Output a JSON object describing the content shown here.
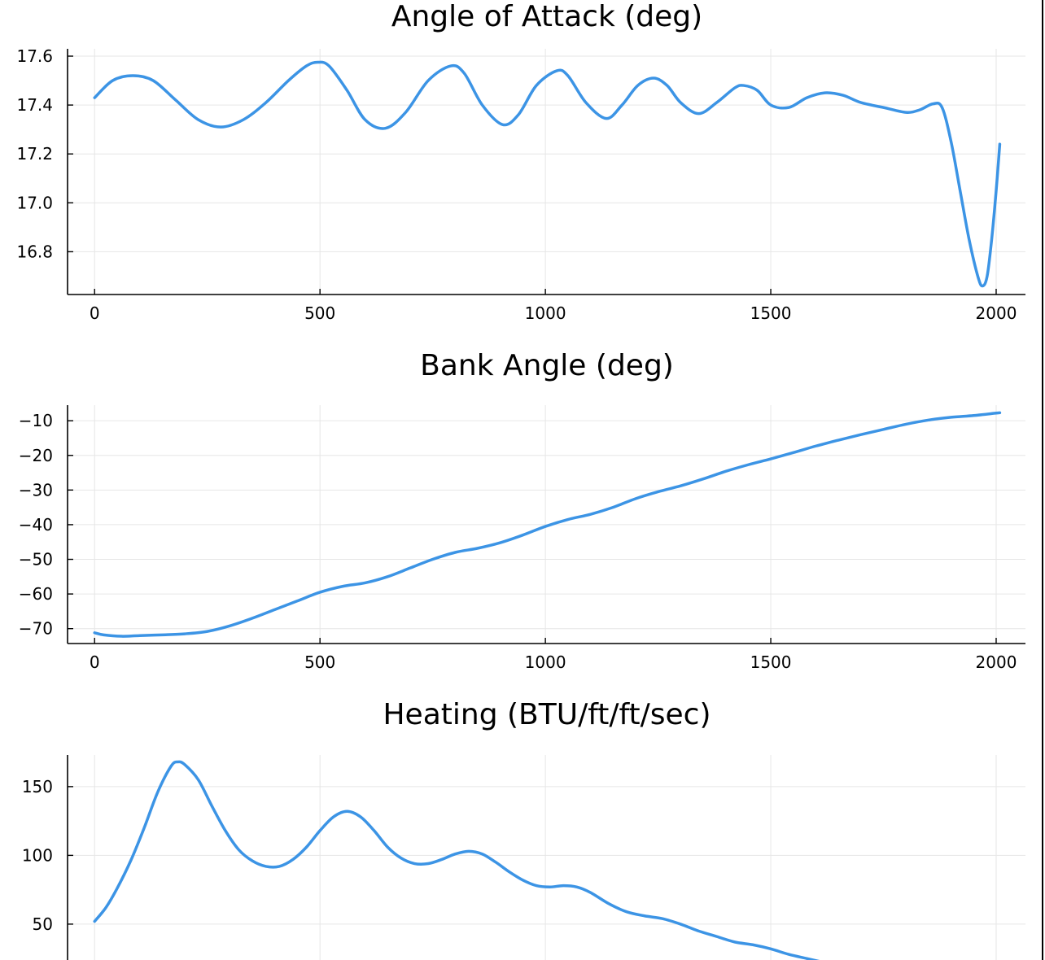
{
  "colors": {
    "series": "#3c94e5",
    "grid": "#e6e6e6",
    "axis": "#000000"
  },
  "chart_data": [
    {
      "type": "line",
      "title": "Angle of Attack (deg)",
      "xlabel": "",
      "ylabel": "",
      "xlim": [
        -60,
        2065
      ],
      "ylim": [
        16.625,
        17.63
      ],
      "xticks": [
        0,
        500,
        1000,
        1500,
        2000
      ],
      "xtick_labels": [
        "0",
        "500",
        "1000",
        "1500",
        "2000"
      ],
      "yticks": [
        16.8,
        17.0,
        17.2,
        17.4,
        17.6
      ],
      "ytick_labels": [
        "16.8",
        "17.0",
        "17.2",
        "17.4",
        "17.6"
      ],
      "grid": true,
      "series": [
        {
          "x": [
            0,
            40,
            85,
            130,
            180,
            230,
            280,
            330,
            380,
            430,
            470,
            495,
            520,
            560,
            600,
            645,
            690,
            740,
            790,
            820,
            860,
            905,
            940,
            980,
            1025,
            1050,
            1090,
            1135,
            1170,
            1205,
            1240,
            1270,
            1300,
            1340,
            1380,
            1420,
            1440,
            1470,
            1500,
            1540,
            1580,
            1620,
            1660,
            1700,
            1750,
            1800,
            1830,
            1860,
            1880,
            1900,
            1920,
            1940,
            1960,
            1970,
            1980,
            1990,
            2000,
            2008
          ],
          "y": [
            17.43,
            17.5,
            17.52,
            17.5,
            17.42,
            17.34,
            17.31,
            17.34,
            17.41,
            17.5,
            17.56,
            17.575,
            17.56,
            17.46,
            17.34,
            17.305,
            17.37,
            17.5,
            17.56,
            17.53,
            17.4,
            17.32,
            17.36,
            17.48,
            17.54,
            17.52,
            17.41,
            17.345,
            17.4,
            17.48,
            17.51,
            17.48,
            17.41,
            17.365,
            17.41,
            17.47,
            17.48,
            17.46,
            17.4,
            17.39,
            17.43,
            17.45,
            17.44,
            17.41,
            17.39,
            17.37,
            17.38,
            17.405,
            17.39,
            17.25,
            17.05,
            16.85,
            16.695,
            16.66,
            16.7,
            16.85,
            17.05,
            17.24
          ]
        }
      ]
    },
    {
      "type": "line",
      "title": "Bank Angle (deg)",
      "xlabel": "",
      "ylabel": "",
      "xlim": [
        -60,
        2065
      ],
      "ylim": [
        -74.3,
        -5.5
      ],
      "xticks": [
        0,
        500,
        1000,
        1500,
        2000
      ],
      "xtick_labels": [
        "0",
        "500",
        "1000",
        "1500",
        "2000"
      ],
      "yticks": [
        -70,
        -60,
        -50,
        -40,
        -30,
        -20,
        -10
      ],
      "ytick_labels": [
        "−70",
        "−60",
        "−50",
        "−40",
        "−30",
        "−20",
        "−10"
      ],
      "grid": true,
      "series": [
        {
          "x": [
            0,
            20,
            60,
            100,
            150,
            200,
            250,
            300,
            350,
            400,
            450,
            500,
            550,
            600,
            650,
            700,
            750,
            800,
            850,
            900,
            950,
            1000,
            1050,
            1100,
            1150,
            1200,
            1250,
            1300,
            1350,
            1400,
            1450,
            1500,
            1550,
            1600,
            1650,
            1700,
            1750,
            1800,
            1850,
            1900,
            1950,
            2000,
            2008
          ],
          "y": [
            -71.2,
            -71.8,
            -72.2,
            -72.0,
            -71.8,
            -71.5,
            -70.8,
            -69.2,
            -67.0,
            -64.5,
            -62.0,
            -59.5,
            -57.8,
            -56.8,
            -55.0,
            -52.5,
            -50.0,
            -48.0,
            -46.8,
            -45.2,
            -43.0,
            -40.5,
            -38.5,
            -37.0,
            -35.0,
            -32.5,
            -30.5,
            -28.8,
            -26.8,
            -24.6,
            -22.7,
            -21.0,
            -19.2,
            -17.3,
            -15.6,
            -14.0,
            -12.5,
            -11.0,
            -9.8,
            -9.0,
            -8.5,
            -7.8,
            -7.7
          ]
        }
      ]
    },
    {
      "type": "line",
      "title": "Heating (BTU/ft/ft/sec)",
      "xlabel": "",
      "ylabel": "",
      "xlim": [
        -60,
        2065
      ],
      "ylim": [
        18,
        173
      ],
      "xticks": [
        0,
        500,
        1000,
        1500,
        2000
      ],
      "xtick_labels": [],
      "yticks": [
        50,
        100,
        150
      ],
      "ytick_labels": [
        "50",
        "100",
        "150"
      ],
      "grid": true,
      "series": [
        {
          "x": [
            0,
            25,
            50,
            80,
            110,
            140,
            170,
            185,
            200,
            230,
            260,
            290,
            320,
            350,
            380,
            410,
            440,
            470,
            500,
            530,
            560,
            590,
            620,
            650,
            680,
            710,
            740,
            770,
            800,
            830,
            860,
            890,
            920,
            950,
            980,
            1010,
            1040,
            1070,
            1100,
            1140,
            1180,
            1220,
            1260,
            1300,
            1340,
            1380,
            1420,
            1460,
            1500,
            1540,
            1580,
            1620,
            1650
          ],
          "y": [
            52,
            62,
            76,
            96,
            120,
            146,
            165,
            168,
            166,
            155,
            136,
            118,
            104,
            96,
            92,
            92,
            97,
            106,
            118,
            128,
            132,
            128,
            118,
            106,
            98,
            94,
            94,
            97,
            101,
            103,
            101,
            95,
            88,
            82,
            78,
            77,
            78,
            77,
            73,
            65,
            59,
            56,
            54,
            50,
            45,
            41,
            37,
            35,
            32,
            28,
            25,
            22,
            20
          ]
        }
      ]
    }
  ]
}
